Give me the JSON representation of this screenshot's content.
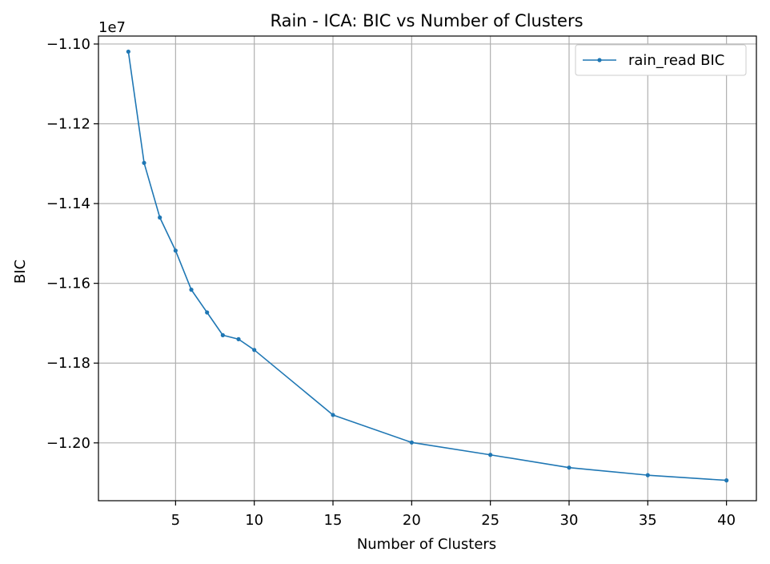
{
  "chart_data": {
    "type": "line",
    "title": "Rain - ICA: BIC vs Number of Clusters",
    "xlabel": "Number of Clusters",
    "ylabel": "BIC",
    "offset_label": "1e7",
    "xlim": [
      0.1,
      41.9
    ],
    "ylim": [
      -12.145,
      -10.98
    ],
    "x_ticks": [
      5,
      10,
      15,
      20,
      25,
      30,
      35,
      40
    ],
    "x_tick_labels": [
      "5",
      "10",
      "15",
      "20",
      "25",
      "30",
      "35",
      "40"
    ],
    "y_ticks": [
      -11.0,
      -11.2,
      -11.4,
      -11.6,
      -11.8,
      -12.0
    ],
    "y_tick_labels": [
      "−1.10",
      "−1.12",
      "−1.14",
      "−1.16",
      "−1.18",
      "−1.20"
    ],
    "grid": true,
    "legend_position": "top-right",
    "series": [
      {
        "name": "rain_read BIC",
        "color": "#1f77b4",
        "x": [
          2,
          3,
          4,
          5,
          6,
          7,
          8,
          9,
          10,
          15,
          20,
          25,
          30,
          35,
          40
        ],
        "y": [
          -11.019,
          -11.298,
          -11.435,
          -11.518,
          -11.616,
          -11.673,
          -11.73,
          -11.74,
          -11.767,
          -11.93,
          -11.999,
          -12.03,
          -12.062,
          -12.081,
          -12.094
        ]
      }
    ]
  }
}
